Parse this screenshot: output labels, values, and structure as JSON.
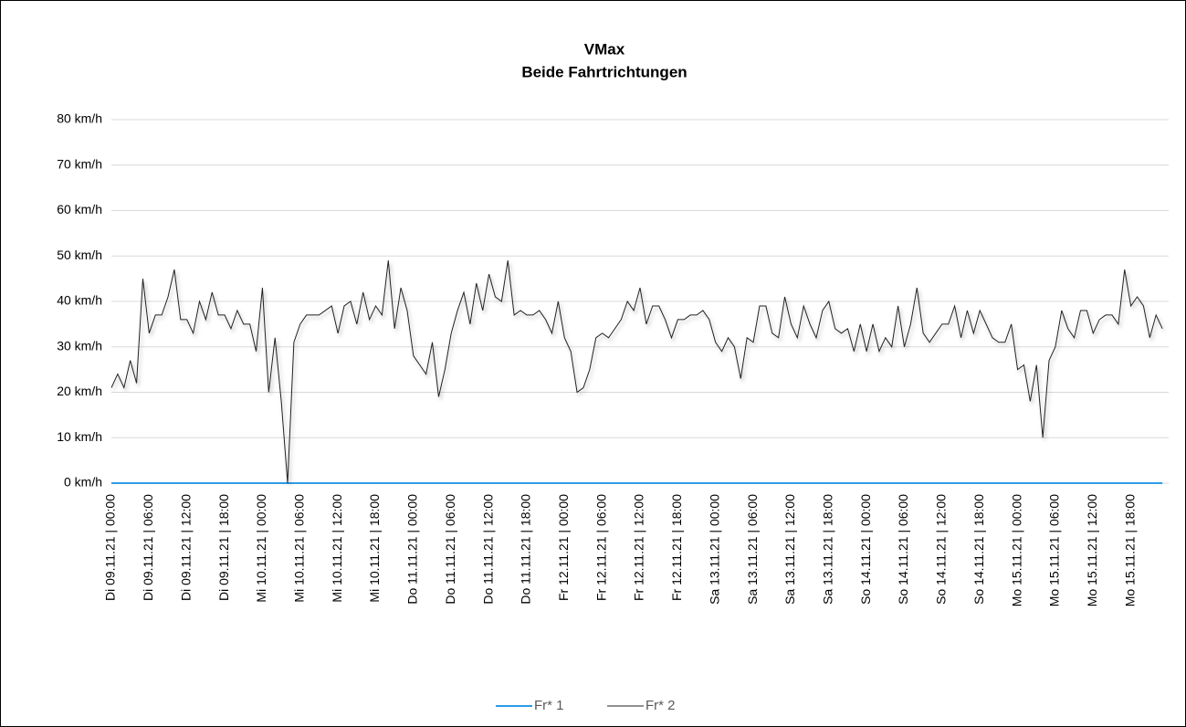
{
  "chart_data": {
    "type": "line",
    "title": "VMax",
    "subtitle": "Beide Fahrtrichtungen",
    "categories": [
      "Di 09.11.21 | 00:00",
      null,
      null,
      null,
      null,
      null,
      "Di 09.11.21 | 06:00",
      null,
      null,
      null,
      null,
      null,
      "Di 09.11.21 | 12:00",
      null,
      null,
      null,
      null,
      null,
      "Di 09.11.21 | 18:00",
      null,
      null,
      null,
      null,
      null,
      "Mi 10.11.21 | 00:00",
      null,
      null,
      null,
      null,
      null,
      "Mi 10.11.21 | 06:00",
      null,
      null,
      null,
      null,
      null,
      "Mi 10.11.21 | 12:00",
      null,
      null,
      null,
      null,
      null,
      "Mi 10.11.21 | 18:00",
      null,
      null,
      null,
      null,
      null,
      "Do 11.11.21 | 00:00",
      null,
      null,
      null,
      null,
      null,
      "Do 11.11.21 | 06:00",
      null,
      null,
      null,
      null,
      null,
      "Do 11.11.21 | 12:00",
      null,
      null,
      null,
      null,
      null,
      "Do 11.11.21 | 18:00",
      null,
      null,
      null,
      null,
      null,
      "Fr 12.11.21 | 00:00",
      null,
      null,
      null,
      null,
      null,
      "Fr 12.11.21 | 06:00",
      null,
      null,
      null,
      null,
      null,
      "Fr 12.11.21 | 12:00",
      null,
      null,
      null,
      null,
      null,
      "Fr 12.11.21 | 18:00",
      null,
      null,
      null,
      null,
      null,
      "Sa 13.11.21 | 00:00",
      null,
      null,
      null,
      null,
      null,
      "Sa 13.11.21 | 06:00",
      null,
      null,
      null,
      null,
      null,
      "Sa 13.11.21 | 12:00",
      null,
      null,
      null,
      null,
      null,
      "Sa 13.11.21 | 18:00",
      null,
      null,
      null,
      null,
      null,
      "So 14.11.21 | 00:00",
      null,
      null,
      null,
      null,
      null,
      "So 14.11.21 | 06:00",
      null,
      null,
      null,
      null,
      null,
      "So 14.11.21 | 12:00",
      null,
      null,
      null,
      null,
      null,
      "So 14.11.21 | 18:00",
      null,
      null,
      null,
      null,
      null,
      "Mo 15.11.21 | 00:00",
      null,
      null,
      null,
      null,
      null,
      "Mo 15.11.21 | 06:00",
      null,
      null,
      null,
      null,
      null,
      "Mo 15.11.21 | 12:00",
      null,
      null,
      null,
      null,
      null,
      "Mo 15.11.21 | 18:00",
      null,
      null,
      null,
      null,
      null
    ],
    "series": [
      {
        "name": "Fr* 1",
        "color": "#2e9be6",
        "values": [
          0,
          0,
          0,
          0,
          0,
          0,
          0,
          0,
          0,
          0,
          0,
          0,
          0,
          0,
          0,
          0,
          0,
          0,
          0,
          0,
          0,
          0,
          0,
          0,
          0,
          0,
          0,
          0,
          0,
          0,
          0,
          0,
          0,
          0,
          0,
          0,
          0,
          0,
          0,
          0,
          0,
          0,
          0,
          0,
          0,
          0,
          0,
          0,
          0,
          0,
          0,
          0,
          0,
          0,
          0,
          0,
          0,
          0,
          0,
          0,
          0,
          0,
          0,
          0,
          0,
          0,
          0,
          0,
          0,
          0,
          0,
          0,
          0,
          0,
          0,
          0,
          0,
          0,
          0,
          0,
          0,
          0,
          0,
          0,
          0,
          0,
          0,
          0,
          0,
          0,
          0,
          0,
          0,
          0,
          0,
          0,
          0,
          0,
          0,
          0,
          0,
          0,
          0,
          0,
          0,
          0,
          0,
          0,
          0,
          0,
          0,
          0,
          0,
          0,
          0,
          0,
          0,
          0,
          0,
          0,
          0,
          0,
          0,
          0,
          0,
          0,
          0,
          0,
          0,
          0,
          0,
          0,
          0,
          0,
          0,
          0,
          0,
          0,
          0,
          0,
          0,
          0,
          0,
          0,
          0,
          0,
          0,
          0,
          0,
          0,
          0,
          0,
          0,
          0,
          0,
          0,
          0,
          0,
          0,
          0,
          0,
          0,
          0,
          0,
          0,
          0,
          0,
          0
        ]
      },
      {
        "name": "Fr* 2",
        "color": "#222222",
        "values": [
          21,
          24,
          21,
          27,
          22,
          45,
          33,
          37,
          37,
          41,
          47,
          36,
          36,
          33,
          40,
          36,
          42,
          37,
          37,
          34,
          38,
          35,
          35,
          29,
          43,
          20,
          32,
          18,
          0,
          31,
          35,
          37,
          37,
          37,
          38,
          39,
          33,
          39,
          40,
          35,
          42,
          36,
          39,
          37,
          49,
          34,
          43,
          38,
          28,
          26,
          24,
          31,
          19,
          25,
          33,
          38,
          42,
          35,
          44,
          38,
          46,
          41,
          40,
          49,
          37,
          38,
          37,
          37,
          38,
          36,
          33,
          40,
          32,
          29,
          20,
          21,
          25,
          32,
          33,
          32,
          34,
          36,
          40,
          38,
          43,
          35,
          39,
          39,
          36,
          32,
          36,
          36,
          37,
          37,
          38,
          36,
          31,
          29,
          32,
          30,
          23,
          32,
          31,
          39,
          39,
          33,
          32,
          41,
          35,
          32,
          39,
          35,
          32,
          38,
          40,
          34,
          33,
          34,
          29,
          35,
          29,
          35,
          29,
          32,
          30,
          39,
          30,
          35,
          43,
          33,
          31,
          33,
          35,
          35,
          39,
          32,
          38,
          33,
          38,
          35,
          32,
          31,
          31,
          35,
          25,
          26,
          18,
          26,
          10,
          27,
          30,
          38,
          34,
          32,
          38,
          38,
          33,
          36,
          37,
          37,
          35,
          47,
          39,
          41,
          39,
          32,
          37,
          34
        ]
      }
    ],
    "ylim": [
      0,
      80
    ],
    "yticks": [
      {
        "value": 0,
        "label": "0 km/h"
      },
      {
        "value": 10,
        "label": "10 km/h"
      },
      {
        "value": 20,
        "label": "20 km/h"
      },
      {
        "value": 30,
        "label": "30 km/h"
      },
      {
        "value": 40,
        "label": "40 km/h"
      },
      {
        "value": 50,
        "label": "50 km/h"
      },
      {
        "value": 60,
        "label": "60 km/h"
      },
      {
        "value": 70,
        "label": "70 km/h"
      },
      {
        "value": 80,
        "label": "80 km/h"
      }
    ],
    "grid": true,
    "legend": "bottom"
  }
}
